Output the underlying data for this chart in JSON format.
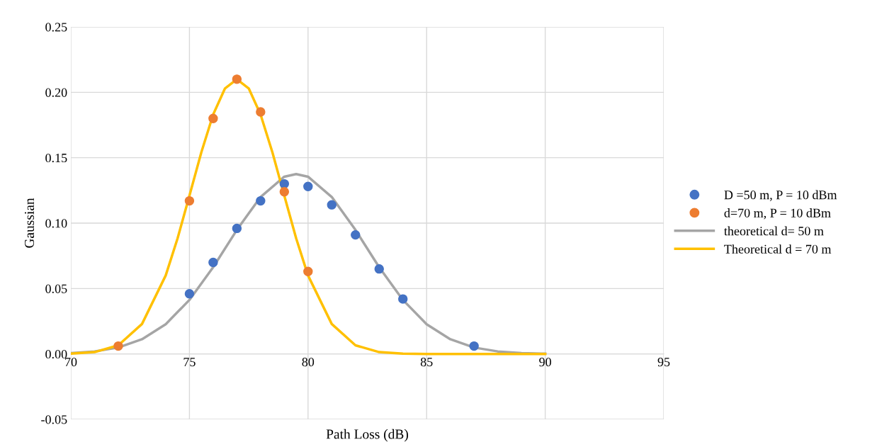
{
  "chart_data": {
    "type": "scatter",
    "xlabel": "Path Loss (dB)",
    "ylabel": "Gaussian",
    "xlim": [
      70,
      95
    ],
    "xticks": [
      70,
      75,
      80,
      85,
      90,
      95
    ],
    "ylim": [
      -0.05,
      0.25
    ],
    "yticks": [
      {
        "value": -0.05,
        "label": "-0.05"
      },
      {
        "value": 0,
        "label": "0.00"
      },
      {
        "value": 0.05,
        "label": "0.05"
      },
      {
        "value": 0.1,
        "label": "0.10"
      },
      {
        "value": 0.15,
        "label": "0.15"
      },
      {
        "value": 0.2,
        "label": "0.20"
      },
      {
        "value": 0.25,
        "label": "0.25"
      }
    ],
    "grid": true,
    "legend": "right",
    "series": [
      {
        "name": "D =50 m, P = 10 dBm",
        "marker": "circle",
        "color": "#4472c4",
        "x": [
          75,
          76,
          77,
          78,
          79,
          80,
          81,
          82,
          83,
          84,
          87
        ],
        "values": [
          0.046,
          0.07,
          0.096,
          0.117,
          0.13,
          0.128,
          0.114,
          0.091,
          0.065,
          0.042,
          0.006
        ]
      },
      {
        "name": "d=70 m, P = 10 dBm",
        "marker": "circle",
        "color": "#ed7d31",
        "x": [
          72,
          75,
          76,
          77,
          78,
          79,
          80
        ],
        "values": [
          0.006,
          0.117,
          0.18,
          0.21,
          0.185,
          0.124,
          0.063
        ]
      },
      {
        "name": "theoretical d= 50 m",
        "type": "line",
        "color": "#a5a5a5",
        "x": [
          70,
          71,
          72,
          73,
          74,
          75,
          76,
          77,
          78,
          79,
          79.5,
          80,
          81,
          82,
          83,
          84,
          85,
          86,
          87,
          88,
          89,
          90
        ],
        "values": [
          0.0006,
          0.0019,
          0.0049,
          0.0112,
          0.0227,
          0.0413,
          0.0663,
          0.0948,
          0.12,
          0.1355,
          0.1375,
          0.1355,
          0.12,
          0.0948,
          0.0663,
          0.0413,
          0.0227,
          0.0112,
          0.0049,
          0.0019,
          0.0006,
          0.0002
        ]
      },
      {
        "name": "Theoretical d = 70 m",
        "type": "line",
        "color": "#ffc000",
        "x": [
          70,
          71,
          72,
          73,
          74,
          74.5,
          75,
          75.5,
          76,
          76.5,
          77,
          77.5,
          78,
          78.5,
          79,
          79.5,
          80,
          81,
          82,
          83,
          84,
          85,
          90
        ],
        "values": [
          0.0002,
          0.0014,
          0.0066,
          0.0229,
          0.06,
          0.0884,
          0.121,
          0.154,
          0.183,
          0.203,
          0.21,
          0.203,
          0.183,
          0.154,
          0.121,
          0.0884,
          0.06,
          0.0229,
          0.0066,
          0.0014,
          0.0002,
          0.0,
          0.0
        ]
      }
    ]
  }
}
